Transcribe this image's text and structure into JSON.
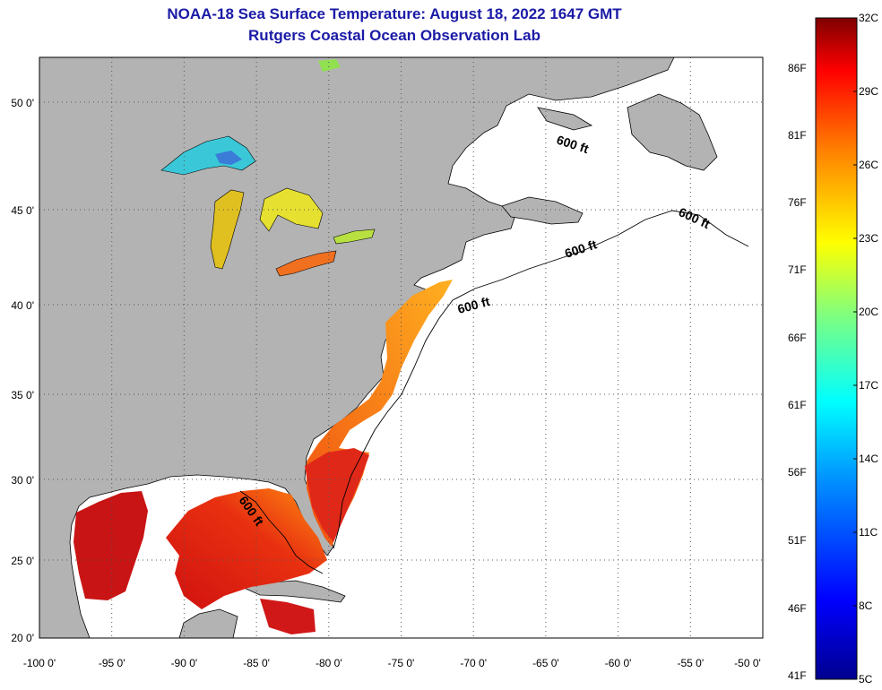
{
  "header": {
    "title": "NOAA-18 Sea Surface Temperature:  August 18, 2022 1647 GMT",
    "subtitle": "Rutgers Coastal Ocean Observation Lab"
  },
  "map": {
    "lon_range": [
      -100,
      -50
    ],
    "lat_range": [
      20,
      52.5
    ],
    "lon_ticks": [
      "-100 0'",
      "-95 0'",
      "-90 0'",
      "-85 0'",
      "-80 0'",
      "-75 0'",
      "-70 0'",
      "-65 0'",
      "-60 0'",
      "-55 0'",
      "-50 0'"
    ],
    "lat_ticks": [
      "50 0'",
      "45 0'",
      "40 0'",
      "35 0'",
      "30 0'",
      "25 0'",
      "20 0'"
    ],
    "contour_labels": [
      "600 ft",
      "600 ft",
      "600 ft",
      "600 ft",
      "600 ft"
    ],
    "colors": {
      "land": "#b3b3b3",
      "ocean": "#ffffff",
      "grid": "#555555"
    }
  },
  "colorbar": {
    "celsius_labels": [
      "32C",
      "29C",
      "26C",
      "23C",
      "20C",
      "17C",
      "14C",
      "11C",
      "8C",
      "5C"
    ],
    "fahrenheit_labels": [
      "86F",
      "81F",
      "76F",
      "71F",
      "66F",
      "61F",
      "56F",
      "51F",
      "46F",
      "41F"
    ],
    "min_c": 5,
    "max_c": 32
  }
}
